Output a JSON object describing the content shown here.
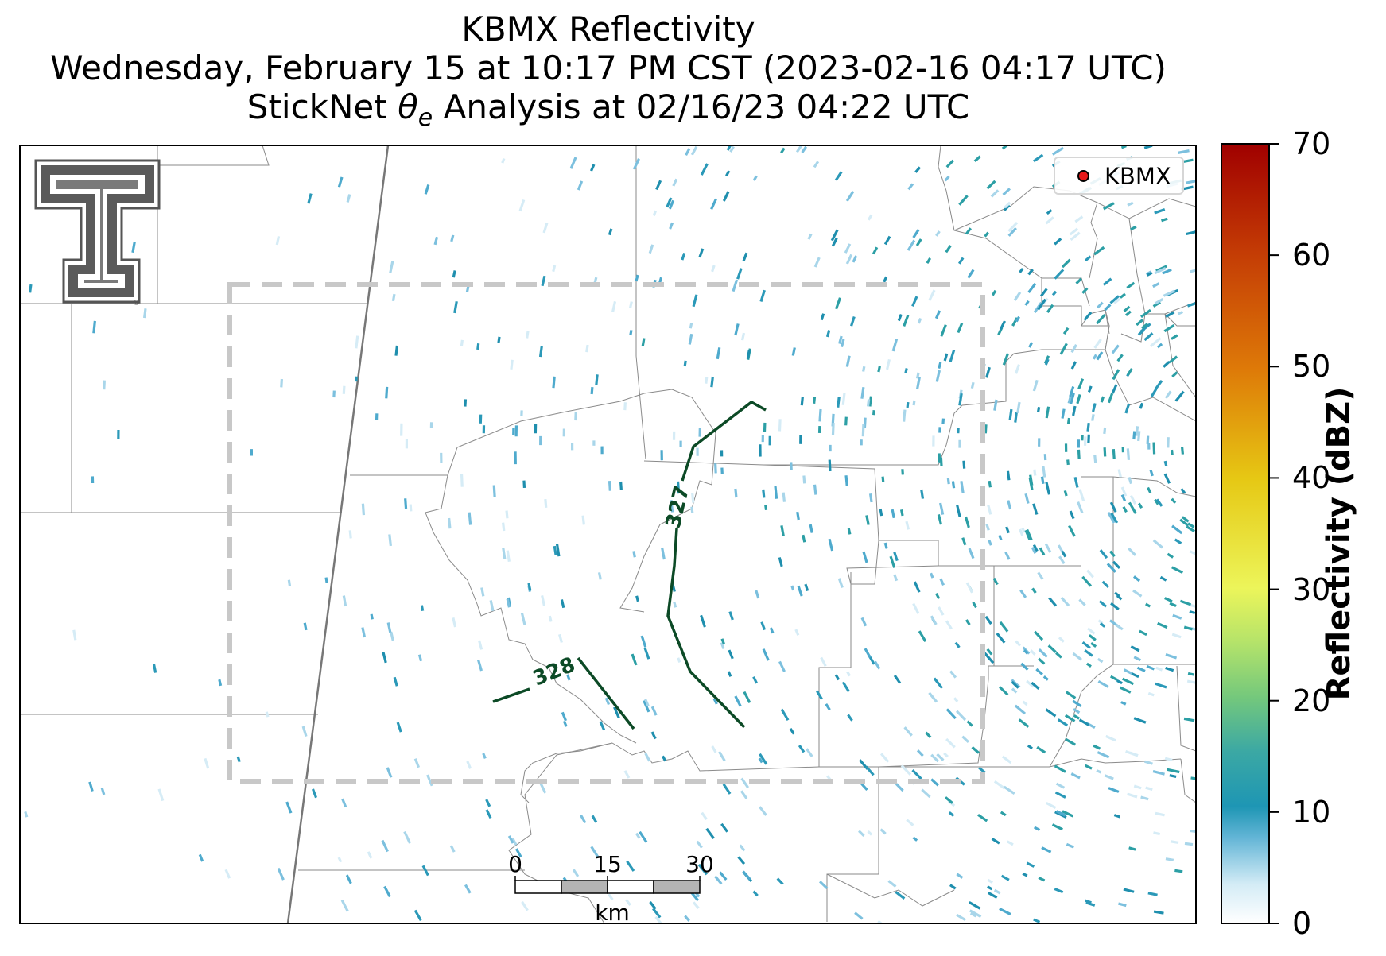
{
  "title": {
    "line1": "KBMX Reflectivity",
    "line2": "Wednesday, February 15 at 10:17 PM CST (2023-02-16 04:17 UTC)",
    "line3_prefix": "StickNet ",
    "line3_symbol": "θ",
    "line3_subscript": "e",
    "line3_suffix": " Analysis at 02/16/23 04:22 UTC"
  },
  "legend": {
    "marker_label": "KBMX",
    "marker_color": "#e8191a"
  },
  "contours": [
    {
      "label": "327",
      "color": "#0c4a26"
    },
    {
      "label": "328",
      "color": "#0c4a26"
    }
  ],
  "colorbar": {
    "label": "Reflectivity (dBZ)",
    "ticks": [
      "0",
      "10",
      "20",
      "30",
      "40",
      "50",
      "60",
      "70"
    ],
    "min": 0,
    "max": 70,
    "stops": [
      "#ffffff",
      "#8cc8e4",
      "#1e96b4",
      "#5ab88c",
      "#a8dc6e",
      "#ecf55a",
      "#e6c814",
      "#e08c0a",
      "#c84605",
      "#a00000"
    ]
  },
  "scale_bar": {
    "ticks": [
      "0",
      "15",
      "30"
    ],
    "unit": "km"
  },
  "logo": {
    "letters": "TT"
  }
}
